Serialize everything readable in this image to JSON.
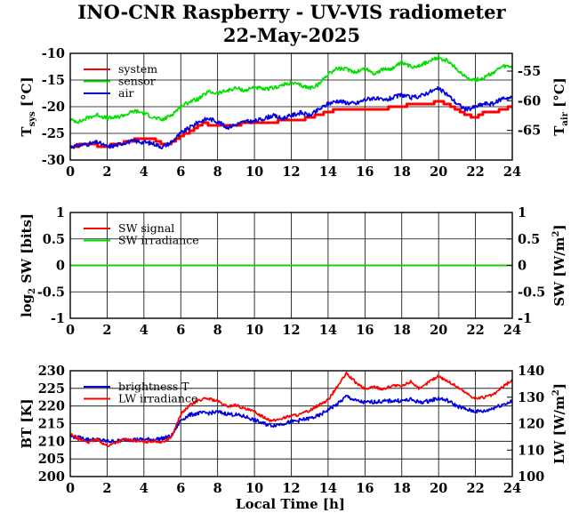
{
  "title": "INO-CNR Raspberry - UV-VIS radiometer",
  "subtitle": "22-May-2025",
  "chart_data": [
    {
      "type": "line",
      "panel": "temperatures",
      "ylabel_left": {
        "main": "T",
        "sub": "sys",
        "unit": " [°C]"
      },
      "ylabel_right": {
        "main": "T",
        "sub": "air",
        "unit": " [°C]"
      },
      "xlim": [
        0,
        24
      ],
      "ylim": [
        -30,
        -10
      ],
      "ylim_right": [
        -70,
        -52
      ],
      "xticks": [
        "0",
        "2",
        "4",
        "6",
        "8",
        "10",
        "12",
        "14",
        "16",
        "18",
        "20",
        "22",
        "24"
      ],
      "yticks_left": [
        "-10",
        "-15",
        "-20",
        "-25",
        "-30"
      ],
      "yticks_right": [
        "-55",
        "-60",
        "-65"
      ],
      "grid": true,
      "legend_position": "top-left",
      "series": [
        {
          "name": "system",
          "color": "#ff0000",
          "axis": "left",
          "step": true,
          "x": [
            0,
            0.3,
            0.6,
            1,
            1.3,
            1.6,
            2,
            2.4,
            2.8,
            3,
            3.3,
            3.6,
            4,
            4.4,
            4.8,
            5,
            5.3,
            5.6,
            6,
            6.3,
            6.6,
            7,
            7.3,
            7.6,
            8,
            8.5,
            9,
            9.5,
            10,
            10.5,
            11,
            11.5,
            12,
            12.5,
            13,
            13.5,
            14,
            14.5,
            15,
            15.5,
            16,
            16.5,
            17,
            17.5,
            18,
            18.5,
            19,
            19.5,
            20,
            20.5,
            21,
            21.5,
            22,
            22.5,
            23,
            23.5,
            24
          ],
          "y": [
            -27.5,
            -27.5,
            -27,
            -27,
            -27,
            -27.5,
            -27.5,
            -27,
            -27,
            -26.5,
            -26.5,
            -26,
            -26,
            -26,
            -26.5,
            -27,
            -27,
            -26.5,
            -25.5,
            -25,
            -24.5,
            -23.5,
            -23,
            -23.5,
            -23.5,
            -23.5,
            -23.5,
            -23,
            -23,
            -23,
            -23,
            -22.5,
            -22.5,
            -22.5,
            -22,
            -21.5,
            -21,
            -20.5,
            -20.5,
            -20.5,
            -20.5,
            -20.5,
            -20.5,
            -20,
            -20,
            -19.5,
            -19.5,
            -19.5,
            -19,
            -19.5,
            -20.5,
            -21.5,
            -22,
            -21,
            -21,
            -20.5,
            -20
          ]
        },
        {
          "name": "sensor",
          "color": "#00e000",
          "axis": "left",
          "x": [
            0,
            0.5,
            1,
            1.5,
            2,
            2.5,
            3,
            3.5,
            4,
            4.5,
            5,
            5.5,
            6,
            6.5,
            7,
            7.5,
            8,
            8.5,
            9,
            9.5,
            10,
            10.5,
            11,
            11.5,
            12,
            12.5,
            13,
            13.5,
            14,
            14.5,
            15,
            15.5,
            16,
            16.5,
            17,
            17.5,
            18,
            18.5,
            19,
            19.5,
            20,
            20.5,
            21,
            21.5,
            22,
            22.5,
            23,
            23.5,
            24
          ],
          "y": [
            -22.5,
            -22.8,
            -22,
            -21.5,
            -22.2,
            -22,
            -21.5,
            -20.8,
            -21.2,
            -22,
            -22.5,
            -21.5,
            -20,
            -19,
            -18.5,
            -17.2,
            -17.5,
            -17,
            -16.5,
            -17,
            -16.3,
            -16.8,
            -16.5,
            -16,
            -15.5,
            -16,
            -16.5,
            -15.8,
            -13.8,
            -12.8,
            -13,
            -13.5,
            -12.8,
            -13.8,
            -13,
            -12.8,
            -11.8,
            -12.5,
            -12.2,
            -11.5,
            -10.8,
            -11.5,
            -13,
            -14.5,
            -15,
            -14.5,
            -13.5,
            -12.5,
            -12.5
          ]
        },
        {
          "name": "air",
          "color": "#0000e0",
          "axis": "right",
          "x": [
            0,
            0.5,
            1,
            1.5,
            2,
            2.5,
            3,
            3.5,
            4,
            4.5,
            5,
            5.5,
            6,
            6.5,
            7,
            7.5,
            8,
            8.5,
            9,
            9.5,
            10,
            10.5,
            11,
            11.5,
            12,
            12.5,
            13,
            13.5,
            14,
            14.5,
            15,
            15.5,
            16,
            16.5,
            17,
            17.5,
            18,
            18.5,
            19,
            19.5,
            20,
            20.5,
            21,
            21.5,
            22,
            22.5,
            23,
            23.5,
            24
          ],
          "y": [
            -67.8,
            -67.5,
            -67.3,
            -67,
            -67.8,
            -67.5,
            -67,
            -66.8,
            -67,
            -67.2,
            -67.8,
            -67,
            -65.5,
            -64.5,
            -63.5,
            -63,
            -63.5,
            -64.5,
            -64,
            -63.5,
            -63.5,
            -63,
            -62.5,
            -63,
            -62.5,
            -62,
            -62.5,
            -61.5,
            -60.5,
            -60,
            -60.3,
            -60.5,
            -59.8,
            -59.5,
            -60,
            -59.5,
            -59,
            -59.5,
            -59.2,
            -58.5,
            -58,
            -59,
            -60.5,
            -61.5,
            -61,
            -60.5,
            -60.5,
            -59.5,
            -59.5
          ]
        }
      ]
    },
    {
      "type": "line",
      "panel": "shortwave",
      "ylabel_left": {
        "main": "log",
        "sub": "2",
        "unit": " SW [bits]"
      },
      "ylabel_right": {
        "main": "SW [W/m",
        "sup": "2",
        "unit": "]"
      },
      "xlim": [
        0,
        24
      ],
      "ylim": [
        -1,
        1
      ],
      "xticks": [
        "0",
        "2",
        "4",
        "6",
        "8",
        "10",
        "12",
        "14",
        "16",
        "18",
        "20",
        "22",
        "24"
      ],
      "yticks_left": [
        "1",
        "0.5",
        "0",
        "-0.5",
        "-1"
      ],
      "yticks_right": [
        "1",
        "0.5",
        "0",
        "-0.5",
        "-1"
      ],
      "grid": true,
      "legend_position": "top-left",
      "series": [
        {
          "name": "SW signal",
          "color": "#ff0000",
          "x": [
            0,
            24
          ],
          "y": [
            0,
            0
          ]
        },
        {
          "name": "SW irradiance",
          "color": "#00e000",
          "x": [
            0,
            24
          ],
          "y": [
            0,
            0
          ]
        }
      ]
    },
    {
      "type": "line",
      "panel": "longwave",
      "ylabel_left": {
        "main": "BT [K]"
      },
      "ylabel_right": {
        "main": "LW [W/m",
        "sup": "2",
        "unit": "]"
      },
      "xlabel": "Local Time [h]",
      "xlim": [
        0,
        24
      ],
      "ylim": [
        200,
        230
      ],
      "ylim_right": [
        100,
        140
      ],
      "xticks": [
        "0",
        "2",
        "4",
        "6",
        "8",
        "10",
        "12",
        "14",
        "16",
        "18",
        "20",
        "22",
        "24"
      ],
      "yticks_left": [
        "230",
        "225",
        "220",
        "215",
        "210",
        "205",
        "200"
      ],
      "yticks_right": [
        "140",
        "130",
        "120",
        "110",
        "100"
      ],
      "grid": true,
      "legend_position": "top-left",
      "series": [
        {
          "name": "brightness T",
          "color": "#0000e0",
          "axis": "left",
          "x": [
            0,
            0.5,
            1,
            1.5,
            2,
            2.5,
            3,
            3.5,
            4,
            4.5,
            5,
            5.5,
            6,
            6.5,
            7,
            7.5,
            8,
            8.5,
            9,
            9.5,
            10,
            10.5,
            11,
            11.5,
            12,
            12.5,
            13,
            13.5,
            14,
            14.5,
            15,
            15.5,
            16,
            16.5,
            17,
            17.5,
            18,
            18.5,
            19,
            19.5,
            20,
            20.5,
            21,
            21.5,
            22,
            22.5,
            23,
            23.5,
            24
          ],
          "y": [
            211.5,
            211,
            210.5,
            210.5,
            210,
            210,
            210.5,
            210.5,
            210.5,
            210.5,
            210.8,
            211.5,
            216,
            217.5,
            218,
            218,
            218.3,
            217.8,
            217.5,
            217,
            216,
            215,
            214.5,
            215,
            215.5,
            216,
            216.5,
            217.2,
            219,
            220.5,
            222.8,
            221.5,
            221,
            221.2,
            221.3,
            221.5,
            221.5,
            221.8,
            221,
            221.5,
            222.2,
            221.5,
            220,
            219,
            218.5,
            218.5,
            219.5,
            220.5,
            221.3
          ]
        },
        {
          "name": "LW irradiance",
          "color": "#ff0000",
          "axis": "right",
          "x": [
            0,
            0.5,
            1,
            1.5,
            2,
            2.5,
            3,
            3.5,
            4,
            4.5,
            5,
            5.5,
            6,
            6.5,
            7,
            7.5,
            8,
            8.5,
            9,
            9.5,
            10,
            10.5,
            11,
            11.5,
            12,
            12.5,
            13,
            13.5,
            14,
            14.5,
            15,
            15.5,
            16,
            16.5,
            17,
            17.5,
            18,
            18.5,
            19,
            19.5,
            20,
            20.5,
            21,
            21.5,
            22,
            22.5,
            23,
            23.5,
            24
          ],
          "y": [
            116,
            114,
            113,
            114,
            111.5,
            113,
            114,
            113.5,
            113,
            113.5,
            113,
            115,
            123.5,
            127,
            129,
            129.5,
            128.5,
            126.5,
            127,
            125.5,
            124.5,
            122.5,
            121,
            122,
            123,
            123.5,
            125,
            127,
            129,
            134,
            139,
            135.5,
            133,
            134,
            133,
            134.5,
            134,
            136,
            133,
            136,
            138,
            136,
            134,
            131.5,
            129.5,
            130,
            131,
            134,
            136.5
          ]
        }
      ]
    }
  ]
}
